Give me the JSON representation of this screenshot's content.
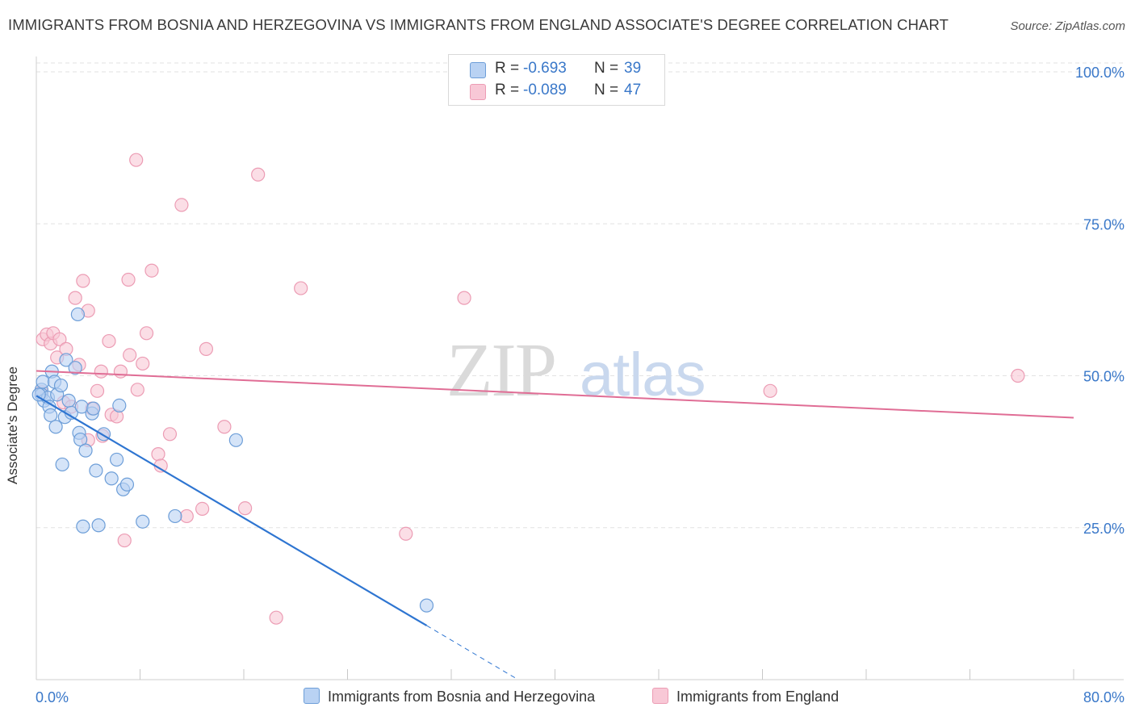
{
  "title": "IMMIGRANTS FROM BOSNIA AND HERZEGOVINA VS IMMIGRANTS FROM ENGLAND ASSOCIATE'S DEGREE CORRELATION CHART",
  "source": "Source: ZipAtlas.com",
  "watermark": {
    "zip": "ZIP",
    "atlas": "atlas"
  },
  "legend_top": [
    {
      "r_label": "R =",
      "r_value": "-0.693",
      "n_label": "N =",
      "n_value": "39"
    },
    {
      "r_label": "R =",
      "r_value": "-0.089",
      "n_label": "N =",
      "n_value": "47"
    }
  ],
  "colors": {
    "blue_fill": "#b9d2f3",
    "blue_stroke": "#6d9ed8",
    "blue_line": "#2e75d1",
    "pink_fill": "#f8c8d6",
    "pink_stroke": "#ec9cb4",
    "pink_line": "#e06d95",
    "value_text": "#3a78c9",
    "grid": "#e2e2e2"
  },
  "chart_data": {
    "type": "scatter",
    "title": "IMMIGRANTS FROM BOSNIA AND HERZEGOVINA VS IMMIGRANTS FROM ENGLAND ASSOCIATE'S DEGREE CORRELATION CHART",
    "xlabel": "",
    "ylabel": "Associate's Degree",
    "xlim": [
      0,
      80
    ],
    "ylim": [
      0,
      102
    ],
    "x_tick_labels": [
      "0.0%",
      "80.0%"
    ],
    "y_ticks": [
      25,
      50,
      75,
      100
    ],
    "y_tick_labels": [
      "25.0%",
      "50.0%",
      "75.0%",
      "100.0%"
    ],
    "legend_position": "top-center",
    "series": [
      {
        "name": "Immigrants from Bosnia and Herzegovina",
        "color": "blue",
        "r": -0.693,
        "n": 39,
        "points": [
          [
            0.4,
            47.7
          ],
          [
            0.4,
            46.9
          ],
          [
            0.5,
            49.0
          ],
          [
            0.6,
            45.9
          ],
          [
            0.9,
            46.4
          ],
          [
            1.0,
            44.9
          ],
          [
            1.1,
            43.5
          ],
          [
            1.2,
            50.7
          ],
          [
            1.4,
            49.0
          ],
          [
            1.5,
            41.6
          ],
          [
            1.6,
            46.9
          ],
          [
            1.9,
            48.4
          ],
          [
            2.0,
            35.4
          ],
          [
            2.2,
            43.2
          ],
          [
            2.3,
            52.6
          ],
          [
            2.5,
            45.9
          ],
          [
            2.7,
            43.9
          ],
          [
            3.0,
            51.3
          ],
          [
            3.2,
            60.1
          ],
          [
            3.3,
            40.6
          ],
          [
            3.4,
            39.5
          ],
          [
            3.5,
            44.9
          ],
          [
            3.6,
            25.2
          ],
          [
            3.8,
            37.7
          ],
          [
            4.3,
            43.8
          ],
          [
            4.4,
            44.6
          ],
          [
            4.6,
            34.4
          ],
          [
            4.8,
            25.4
          ],
          [
            5.2,
            40.4
          ],
          [
            5.8,
            33.1
          ],
          [
            6.2,
            36.2
          ],
          [
            6.4,
            45.1
          ],
          [
            6.7,
            31.3
          ],
          [
            7.0,
            32.1
          ],
          [
            8.2,
            26.0
          ],
          [
            10.7,
            26.9
          ],
          [
            15.4,
            39.4
          ],
          [
            30.1,
            12.2
          ],
          [
            0.2,
            46.9
          ]
        ],
        "trend": {
          "x0": 0,
          "y0": 46.7,
          "x1": 30.1,
          "y1": 8.9,
          "dashed_to_x": 37.0,
          "dashed_to_y": 0.2
        }
      },
      {
        "name": "Immigrants from England",
        "color": "pink",
        "r": -0.089,
        "n": 47,
        "points": [
          [
            0.4,
            47.3
          ],
          [
            0.5,
            56.0
          ],
          [
            0.8,
            56.8
          ],
          [
            1.1,
            55.3
          ],
          [
            1.3,
            57.0
          ],
          [
            1.6,
            53.0
          ],
          [
            1.8,
            56.0
          ],
          [
            2.1,
            45.6
          ],
          [
            2.3,
            54.4
          ],
          [
            2.7,
            44.9
          ],
          [
            3.0,
            62.8
          ],
          [
            3.3,
            51.8
          ],
          [
            3.6,
            65.6
          ],
          [
            4.0,
            39.4
          ],
          [
            4.0,
            60.7
          ],
          [
            4.3,
            44.6
          ],
          [
            4.7,
            47.5
          ],
          [
            5.0,
            50.7
          ],
          [
            5.1,
            40.1
          ],
          [
            5.6,
            55.7
          ],
          [
            5.8,
            43.6
          ],
          [
            6.2,
            43.3
          ],
          [
            6.5,
            50.7
          ],
          [
            6.8,
            22.9
          ],
          [
            7.1,
            65.8
          ],
          [
            7.2,
            53.4
          ],
          [
            7.7,
            85.5
          ],
          [
            7.8,
            47.7
          ],
          [
            8.2,
            52.0
          ],
          [
            8.5,
            57.0
          ],
          [
            8.9,
            67.3
          ],
          [
            9.4,
            37.1
          ],
          [
            9.6,
            35.2
          ],
          [
            10.3,
            40.4
          ],
          [
            11.2,
            78.1
          ],
          [
            11.6,
            26.9
          ],
          [
            12.8,
            28.1
          ],
          [
            13.1,
            54.4
          ],
          [
            14.5,
            41.6
          ],
          [
            16.1,
            28.2
          ],
          [
            17.1,
            83.1
          ],
          [
            18.5,
            10.2
          ],
          [
            20.4,
            64.4
          ],
          [
            28.5,
            24.0
          ],
          [
            33.0,
            62.8
          ],
          [
            56.6,
            47.5
          ],
          [
            75.7,
            50.0
          ]
        ],
        "trend": {
          "x0": 0,
          "y0": 50.8,
          "x1": 80,
          "y1": 43.1
        }
      }
    ]
  }
}
